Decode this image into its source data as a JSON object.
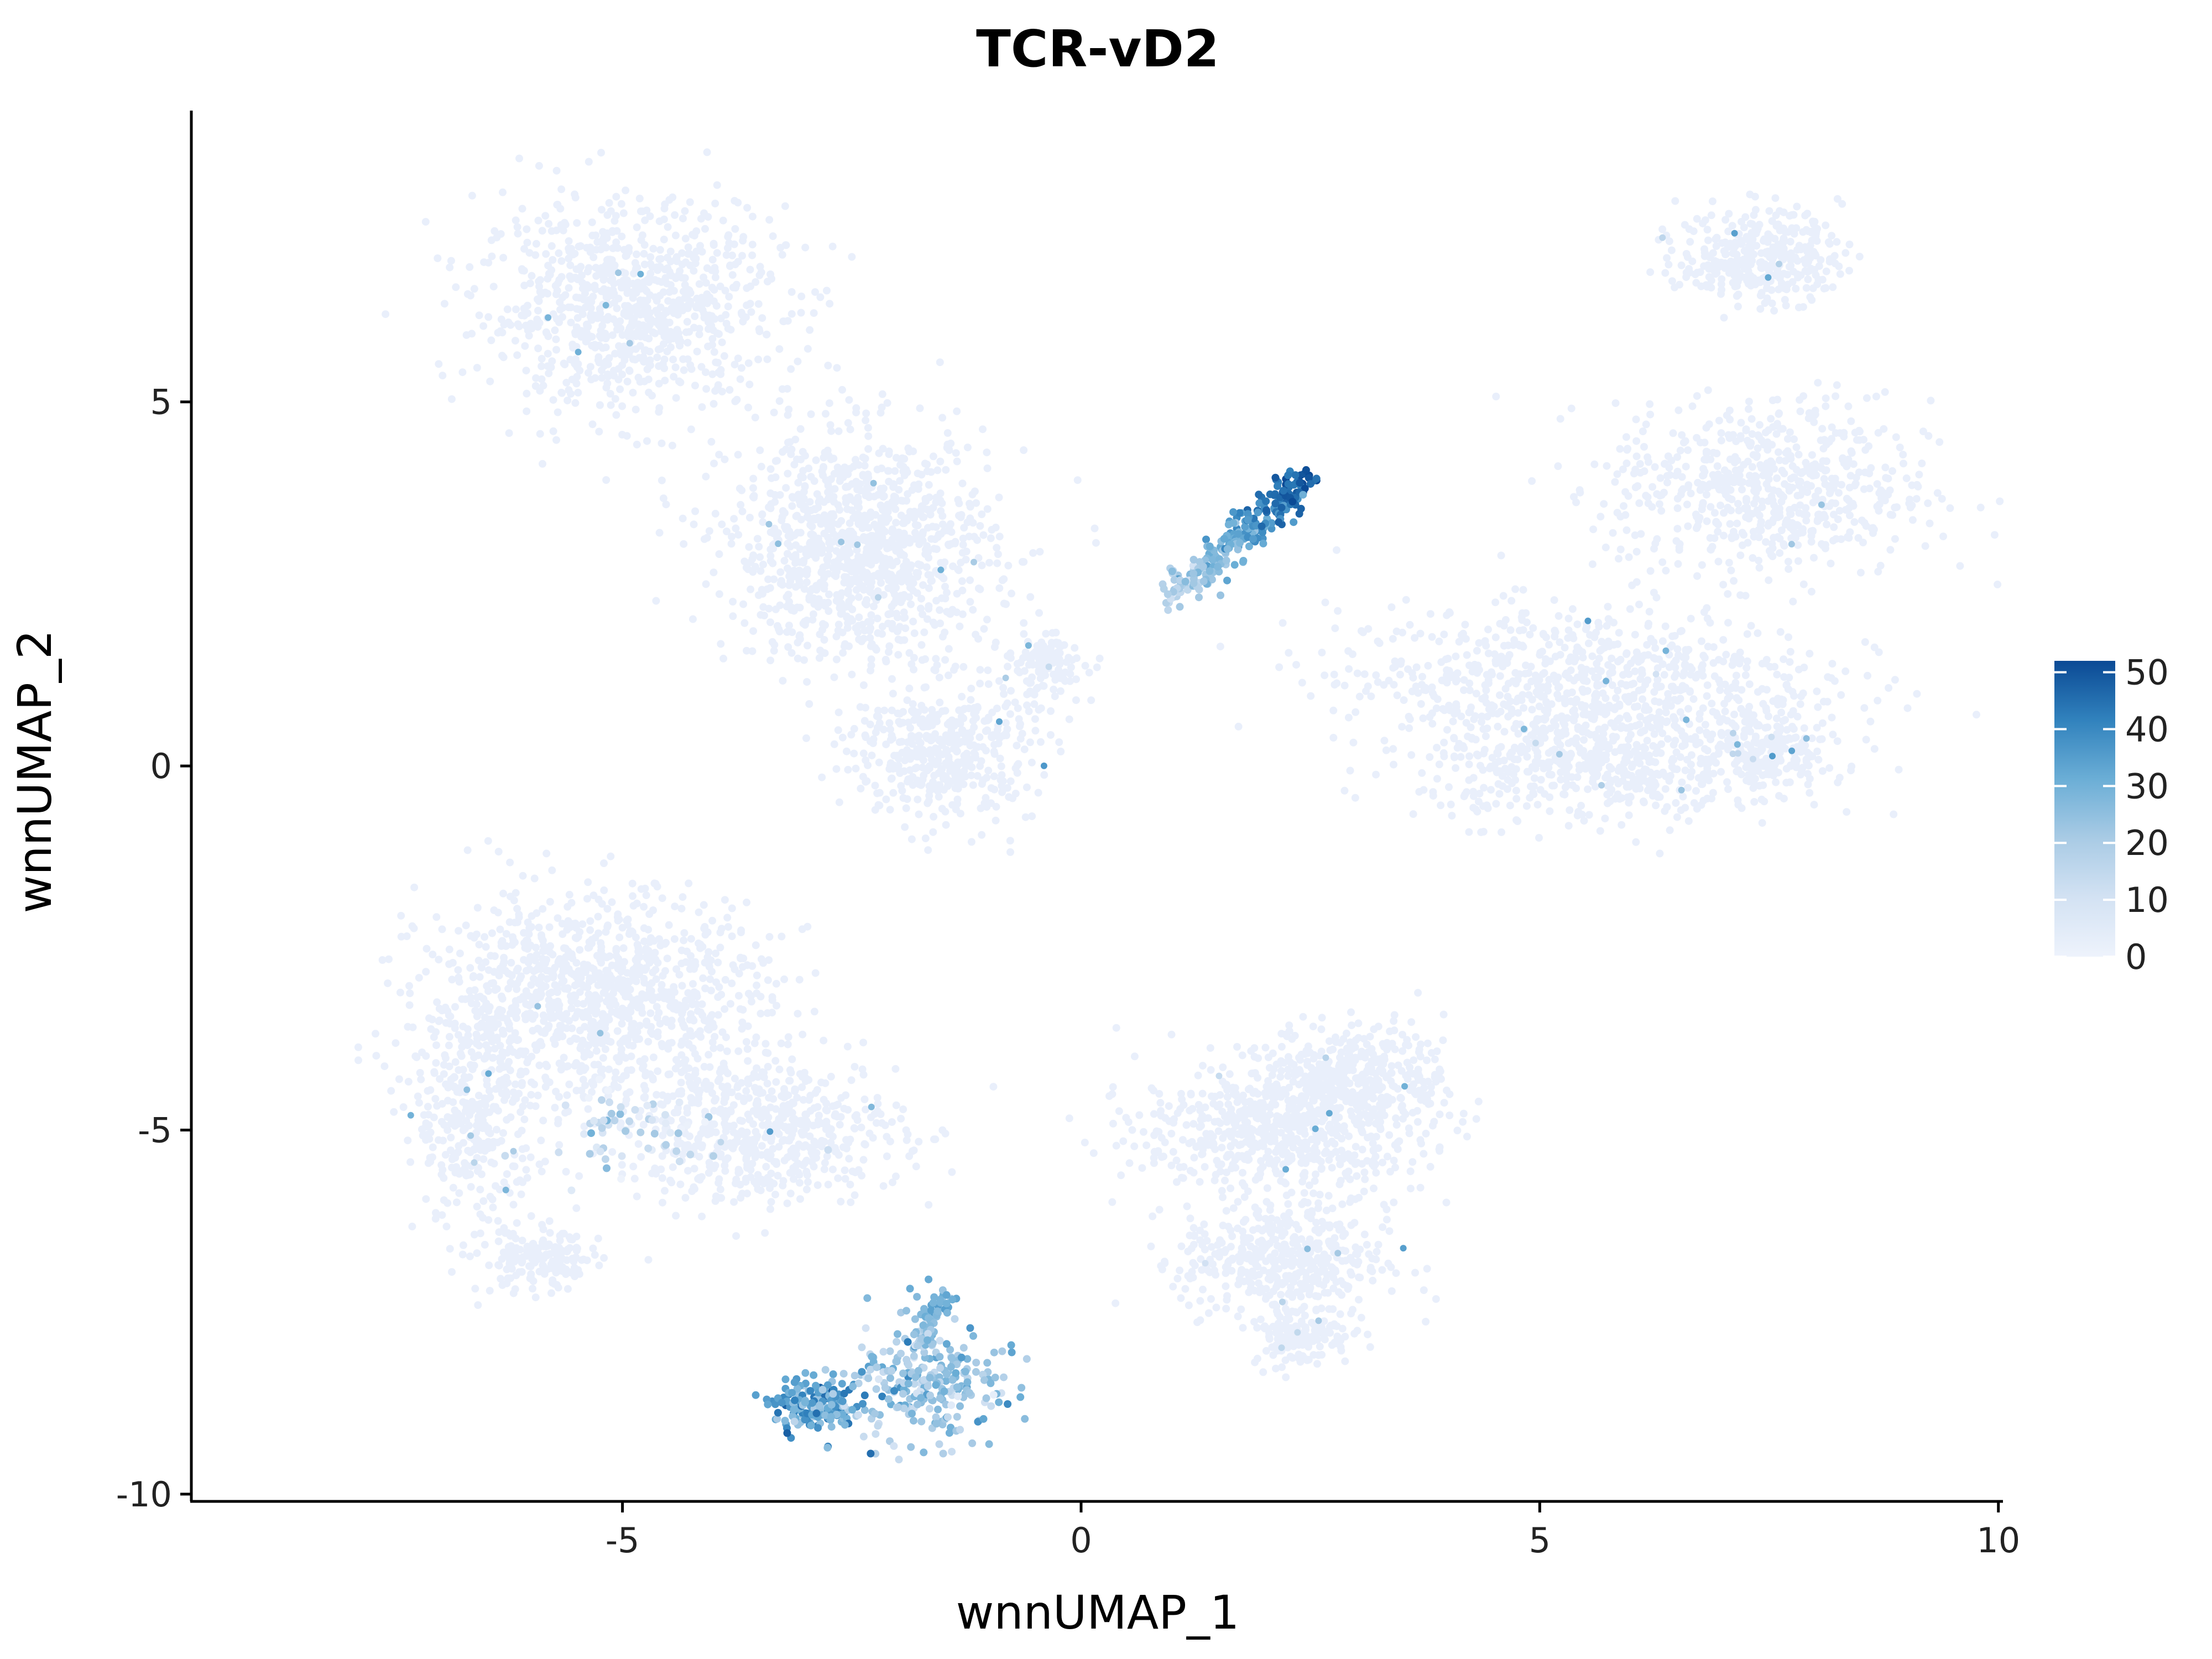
{
  "chart_data": {
    "type": "scatter",
    "title": "TCR-vD2",
    "xlabel": "wnnUMAP_1",
    "ylabel": "wnnUMAP_2",
    "xlim": [
      -9.7,
      10.05
    ],
    "ylim": [
      -10.1,
      9.0
    ],
    "x_ticks": [
      -5,
      0,
      5,
      10
    ],
    "x_tick_labels": [
      "-5",
      "0",
      "5",
      "10"
    ],
    "y_ticks": [
      5,
      0,
      -5,
      -10
    ],
    "y_tick_labels": [
      "5",
      "0",
      "-5",
      "-10"
    ],
    "grid": false,
    "legend": {
      "placement": "right",
      "type": "colorbar",
      "range": [
        0,
        52
      ],
      "ticks": [
        0,
        10,
        20,
        30,
        40,
        50
      ],
      "tick_labels": [
        "0",
        "10",
        "20",
        "30",
        "40",
        "50"
      ],
      "low_color": "#eef3fc",
      "high_color": "#0b4a95"
    },
    "colors": {
      "background_cells": "#e9effb",
      "low": "#eef3fc",
      "mid_low": "#c6dbef",
      "mid": "#6baed6",
      "mid_high": "#3182bd",
      "high": "#0b4a95"
    },
    "clusters_low_expression": [
      {
        "name": "upper-left",
        "center": [
          -4.9,
          6.3
        ],
        "spread": [
          1.5,
          1.3
        ],
        "count": 900
      },
      {
        "name": "upper-mid",
        "center": [
          -2.4,
          3.0
        ],
        "spread": [
          1.3,
          1.4
        ],
        "count": 1100
      },
      {
        "name": "upper-mid-lower",
        "center": [
          -1.5,
          0.2
        ],
        "spread": [
          0.9,
          0.9
        ],
        "count": 450
      },
      {
        "name": "center-small",
        "center": [
          -0.4,
          1.4
        ],
        "spread": [
          0.4,
          0.4
        ],
        "count": 120
      },
      {
        "name": "right-top",
        "center": [
          7.4,
          7.0
        ],
        "spread": [
          0.8,
          0.6
        ],
        "count": 350
      },
      {
        "name": "right-upper",
        "center": [
          7.5,
          3.8
        ],
        "spread": [
          1.6,
          1.1
        ],
        "count": 650
      },
      {
        "name": "right-mid",
        "center": [
          5.4,
          1.2
        ],
        "spread": [
          2.4,
          0.9
        ],
        "count": 750
      },
      {
        "name": "right-lower",
        "center": [
          5.7,
          0.0
        ],
        "spread": [
          1.8,
          0.7
        ],
        "count": 550
      },
      {
        "name": "right-blob",
        "center": [
          7.5,
          0.2
        ],
        "spread": [
          0.6,
          0.5
        ],
        "count": 180
      },
      {
        "name": "lower-left",
        "center": [
          -5.3,
          -3.2
        ],
        "spread": [
          1.7,
          1.3
        ],
        "count": 1100
      },
      {
        "name": "lower-left-strip",
        "center": [
          -6.6,
          -4.8
        ],
        "spread": [
          0.6,
          1.4
        ],
        "count": 350
      },
      {
        "name": "lower-left-bottom",
        "center": [
          -5.9,
          -6.8
        ],
        "spread": [
          0.6,
          0.4
        ],
        "count": 180
      },
      {
        "name": "lower-center",
        "center": [
          -3.5,
          -5.0
        ],
        "spread": [
          1.4,
          0.9
        ],
        "count": 600
      },
      {
        "name": "lower-right",
        "center": [
          2.2,
          -5.0
        ],
        "spread": [
          1.4,
          0.8
        ],
        "count": 700
      },
      {
        "name": "lower-right-upper",
        "center": [
          3.0,
          -4.2
        ],
        "spread": [
          0.9,
          0.6
        ],
        "count": 350
      },
      {
        "name": "lower-right-bottom",
        "center": [
          2.2,
          -6.8
        ],
        "spread": [
          1.0,
          0.7
        ],
        "count": 450
      },
      {
        "name": "lower-right-tail",
        "center": [
          2.4,
          -7.8
        ],
        "spread": [
          0.5,
          0.4
        ],
        "count": 150
      }
    ],
    "clusters_high_expression": [
      {
        "name": "gd-upper-streak",
        "start": [
          1.0,
          2.3
        ],
        "end": [
          2.5,
          4.0
        ],
        "spread": 0.12,
        "count": 260,
        "value_start": 15,
        "value_end": 50
      },
      {
        "name": "gd-bottom-left",
        "center": [
          -2.9,
          -8.8
        ],
        "spread": [
          0.22,
          0.18
        ],
        "count": 170,
        "value": 32
      },
      {
        "name": "gd-bottom-right",
        "center": [
          -1.7,
          -8.5
        ],
        "spread": [
          0.4,
          0.4
        ],
        "count": 260,
        "value": 22
      },
      {
        "name": "gd-bottom-stem",
        "start": [
          -1.8,
          -8.0
        ],
        "end": [
          -1.5,
          -7.2
        ],
        "spread": 0.07,
        "count": 60,
        "value_start": 20,
        "value_end": 32
      },
      {
        "name": "lower-left-moderate",
        "center": [
          -4.9,
          -5.0
        ],
        "spread": [
          0.5,
          0.3
        ],
        "count": 60,
        "value": 12
      }
    ]
  }
}
